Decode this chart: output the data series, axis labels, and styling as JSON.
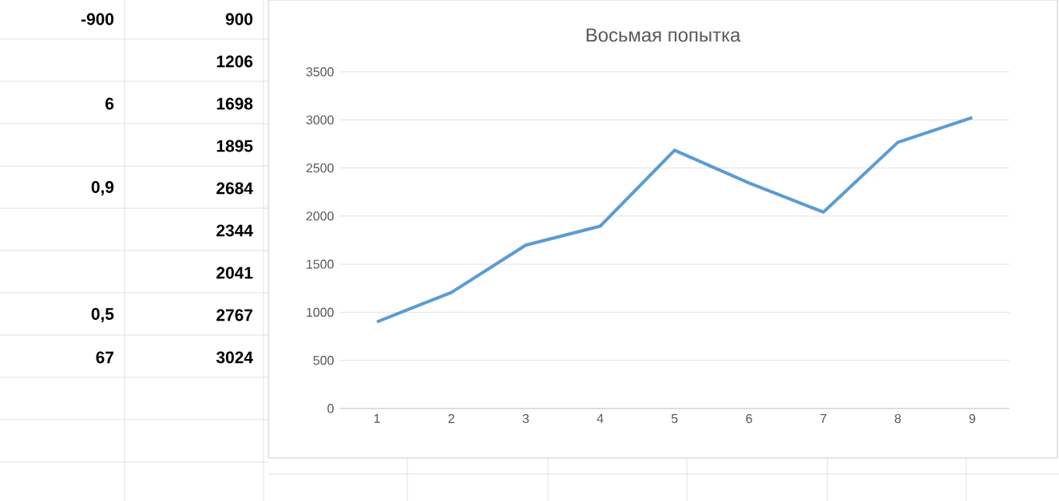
{
  "chart_data": {
    "type": "line",
    "title": "Восьмая попытка",
    "categories": [
      "1",
      "2",
      "3",
      "4",
      "5",
      "6",
      "7",
      "8",
      "9"
    ],
    "values": [
      900,
      1206,
      1698,
      1895,
      2684,
      2344,
      2041,
      2767,
      3024
    ],
    "color": "#5b9bd5",
    "ylim": [
      0,
      3500
    ],
    "yticks": [
      0,
      500,
      1000,
      1500,
      2000,
      2500,
      3000,
      3500
    ],
    "grid": "y",
    "annotations": [
      "-900",
      "900",
      "1206",
      "6",
      "1698",
      "1895",
      "0,9",
      "2684",
      "2344",
      "2041",
      "0,5",
      "2767",
      "67",
      "3024"
    ]
  }
}
